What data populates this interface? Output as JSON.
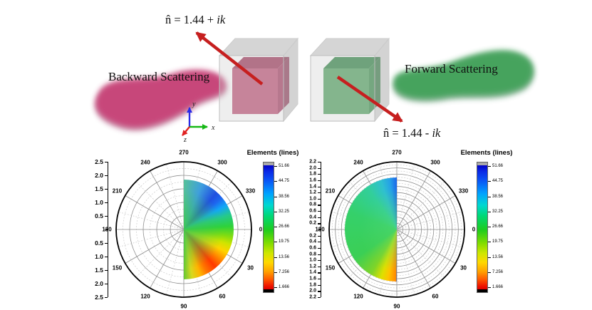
{
  "figure": {
    "top": {
      "refractive_label_plus": {
        "prefix": "n̂ = 1.44 + ",
        "italic": "ik"
      },
      "refractive_label_minus": {
        "prefix": "n̂ = 1.44 - ",
        "italic": "ik"
      },
      "backward_label": "Backward Scattering",
      "forward_label": "Forward Scattering",
      "axis_triad": {
        "x": "x",
        "y": "y",
        "z": "z"
      },
      "colors": {
        "arrow_red": "#c61f1f",
        "backward_blob": "#c73f76",
        "forward_blob": "#41a158",
        "inner_cube_left_front": "#c25c7e",
        "inner_cube_right_front": "#5ca86b",
        "outer_glass_shell": "#b9b9b9",
        "axis_x_green": "#16b816",
        "axis_y_blue": "#2a2ae8",
        "axis_z_red": "#e02020"
      }
    }
  },
  "chart_data": [
    {
      "type": "polar",
      "name": "backward-scattering-polar",
      "angular_ticks": [
        "0",
        "30",
        "60",
        "90",
        "120",
        "150",
        "180",
        "210",
        "240",
        "270",
        "300",
        "330"
      ],
      "angular_direction": "0° at right, increasing clockwise (90° at bottom, 270° at top)",
      "radial_axis": {
        "max": 2.5,
        "step": 0.5,
        "labels_top_to_bottom": [
          "2.5",
          "2.0",
          "1.5",
          "1.0",
          "0.5",
          "",
          "0.5",
          "1.0",
          "1.5",
          "2.0",
          "2.5"
        ]
      },
      "grid": {
        "rings_solid": 5,
        "spokes_solid_every_deg": 30,
        "spokes_dashed_every_deg": 15
      },
      "lobe": {
        "half": "right",
        "radius_fraction": 0.73,
        "colors_top_to_bottom_clockwise": [
          "teal-green",
          "blue (300-330°)",
          "cyan",
          "green (near 0°)",
          "yellow",
          "orange",
          "red (15-35°)",
          "orange",
          "yellow-green (near 90°)"
        ]
      },
      "colorbar": {
        "title": "Elements (lines)",
        "tick_labels": [
          "51.66",
          "44.75",
          "38.56",
          "32.25",
          "26.66",
          "19.75",
          "13.56",
          "7.256",
          "1.666"
        ],
        "scheme": "jet blue-to-red, gray cap at top, black cap at bottom"
      }
    },
    {
      "type": "polar",
      "name": "forward-scattering-polar",
      "angular_ticks": [
        "0",
        "30",
        "60",
        "90",
        "120",
        "150",
        "180",
        "210",
        "240",
        "270",
        "300",
        "330"
      ],
      "angular_direction": "0° at right, increasing clockwise (90° at bottom, 270° at top)",
      "radial_axis": {
        "max": 2.2,
        "step": 0.2,
        "labels_top_to_bottom": [
          "2.2",
          "2.0",
          "1.8",
          "1.6",
          "1.4",
          "1.2",
          "1.0",
          "0.8",
          "0.6",
          "0.4",
          "0.2",
          "",
          "0.2",
          "0.4",
          "0.6",
          "0.8",
          "1.0",
          "1.2",
          "1.4",
          "1.6",
          "1.8",
          "2.0",
          "2.2"
        ]
      },
      "grid": {
        "rings_solid": 11,
        "spokes_solid_every_deg": 30,
        "spokes_dashed_every_deg": 15
      },
      "lobe": {
        "half": "left",
        "radius_fraction": 0.77,
        "colors": [
          "blue sliver near 270° axis",
          "cyan band",
          "green body (120-300°)",
          "yellow-orange near 90° axis"
        ]
      },
      "colorbar": {
        "title": "Elements (lines)",
        "tick_labels": [
          "51.66",
          "44.75",
          "38.56",
          "32.25",
          "26.66",
          "19.75",
          "13.56",
          "7.256",
          "1.666"
        ],
        "scheme": "jet blue-to-red, gray cap at top, black cap at bottom"
      }
    }
  ]
}
